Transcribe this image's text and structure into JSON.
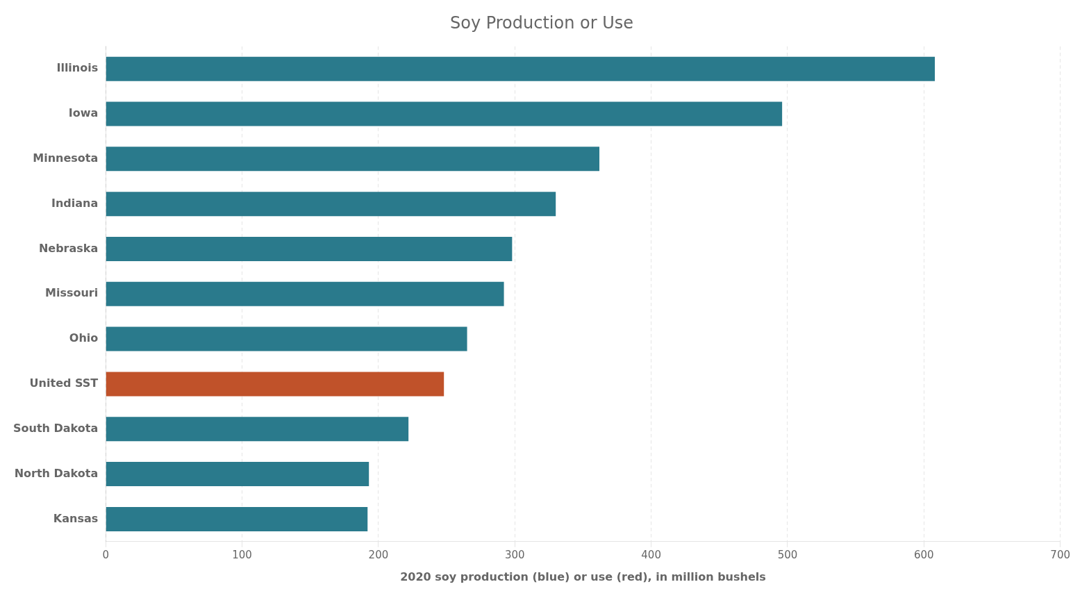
{
  "chart_data": {
    "type": "bar",
    "orientation": "horizontal",
    "title": "Soy Production or Use",
    "xlabel": "2020 soy production (blue) or use (red), in million bushels",
    "categories": [
      "Illinois",
      "Iowa",
      "Minnesota",
      "Indiana",
      "Nebraska",
      "Missouri",
      "Ohio",
      "United SST",
      "South Dakota",
      "North Dakota",
      "Kansas"
    ],
    "values": [
      608,
      496,
      362,
      330,
      298,
      292,
      265,
      248,
      222,
      193,
      192
    ],
    "colors": [
      "#2a7a8c",
      "#2a7a8c",
      "#2a7a8c",
      "#2a7a8c",
      "#2a7a8c",
      "#2a7a8c",
      "#2a7a8c",
      "#c0522a",
      "#2a7a8c",
      "#2a7a8c",
      "#2a7a8c"
    ],
    "xlim": [
      0,
      700
    ],
    "xticks": [
      0,
      100,
      200,
      300,
      400,
      500,
      600,
      700
    ],
    "grid": true
  }
}
